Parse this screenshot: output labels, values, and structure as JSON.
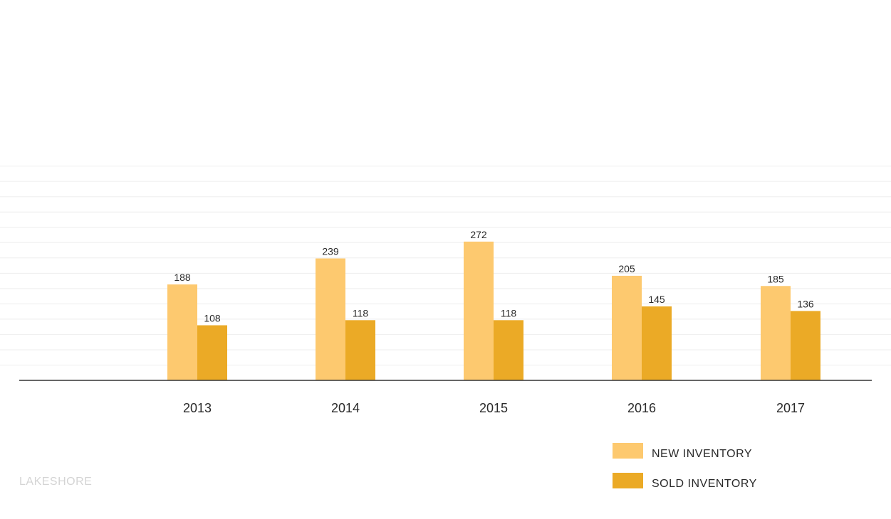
{
  "chart_data": {
    "type": "bar",
    "title": "",
    "xlabel": "",
    "ylabel": "",
    "categories": [
      "2013",
      "2014",
      "2015",
      "2016",
      "2017"
    ],
    "series": [
      {
        "name": "NEW INVENTORY",
        "color": "#fdc96f",
        "values": [
          188,
          239,
          272,
          205,
          185
        ]
      },
      {
        "name": "SOLD INVENTORY",
        "color": "#ebaa26",
        "values": [
          108,
          118,
          118,
          145,
          136
        ]
      }
    ],
    "ylim": [
      0,
      400
    ],
    "grid": true,
    "legend_position": "bottom-right",
    "grid_color": "#eeeeee",
    "axis_color": "#333333"
  },
  "brand": {
    "watermark": "LAKESHORE"
  }
}
